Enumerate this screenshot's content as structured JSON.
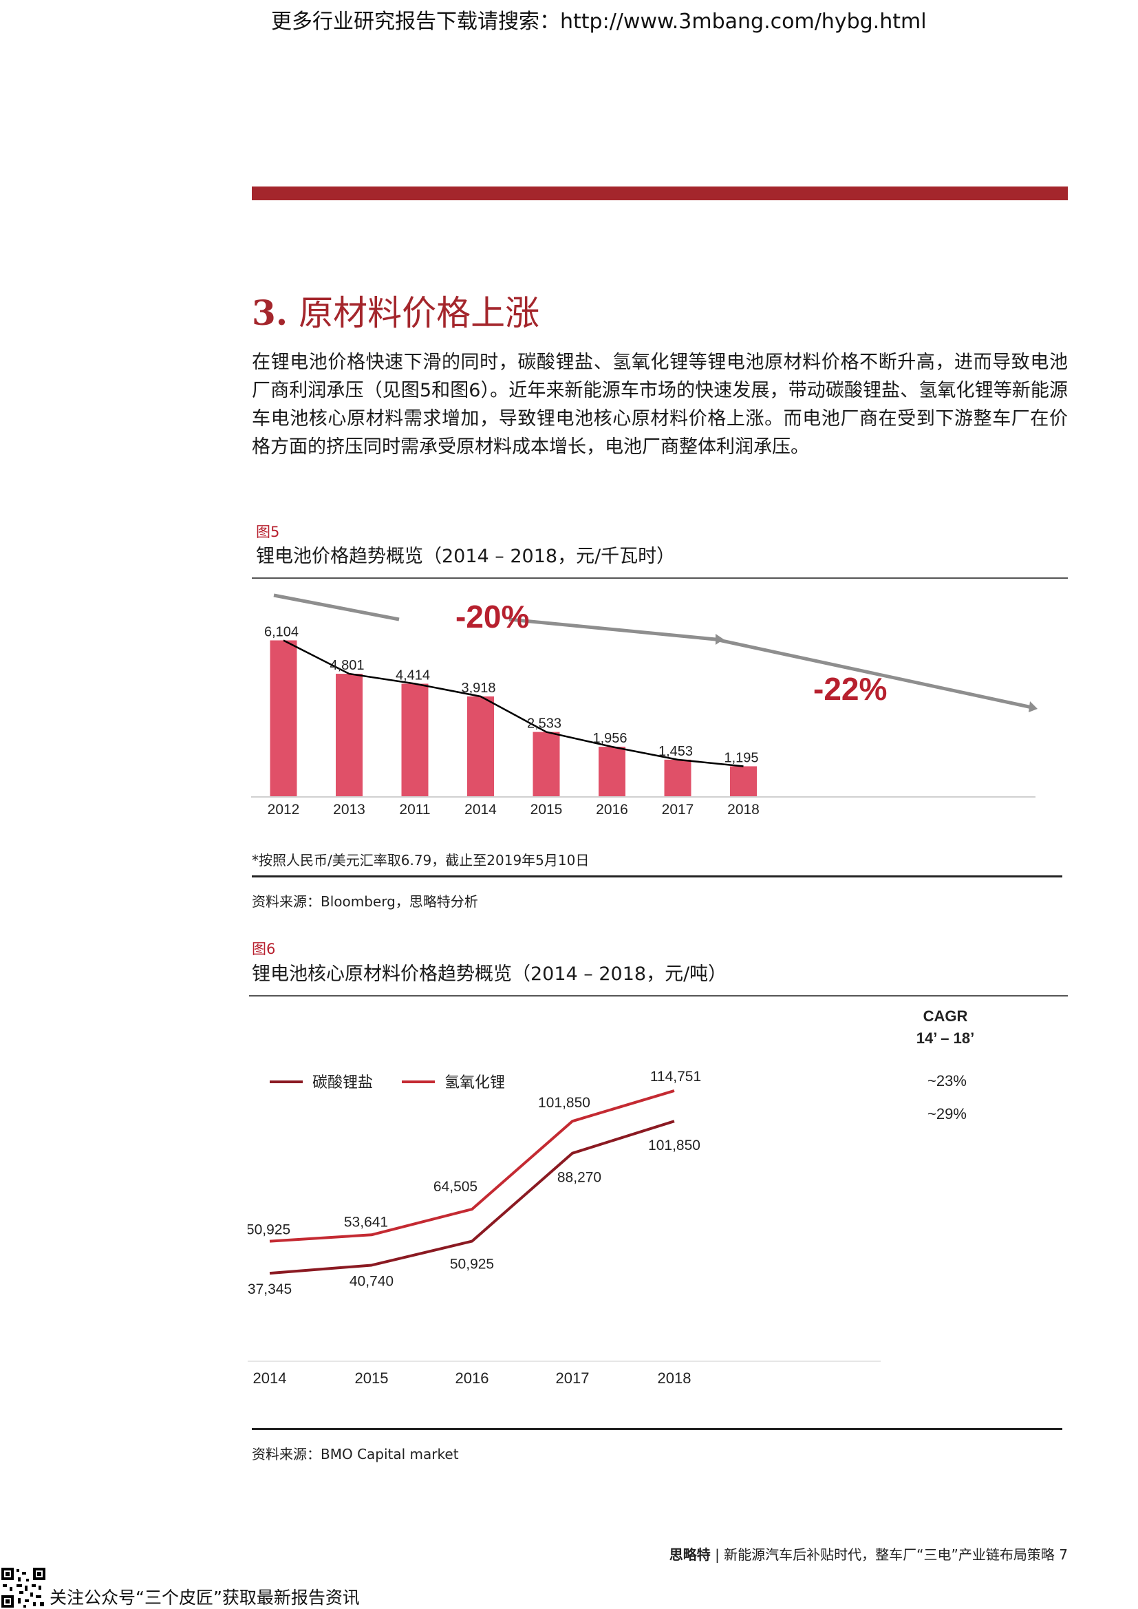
{
  "header": {
    "promo": "更多行业研究报告下载请搜索：http://www.3mbang.com/hybg.html"
  },
  "section": {
    "number": "3.",
    "title": "原材料价格上涨",
    "paragraph": "在锂电池价格快速下滑的同时，碳酸锂盐、氢氧化锂等锂电池原材料价格不断升高，进而导致电池厂商利润承压（见图5和图6）。近年来新能源车市场的快速发展，带动碳酸锂盐、氢氧化锂等新能源车电池核心原材料需求增加，导致锂电池核心原材料价格上涨。而电池厂商在受到下游整车厂在价格方面的挤压同时需承受原材料成本增长，电池厂商整体利润承压。"
  },
  "figure5": {
    "label": "图5",
    "title": "锂电池价格趋势概览（2014 – 2018，元/千瓦时）",
    "note": "*按照人民币/美元汇率取6.79，截止至2019年5月10日",
    "source": "资料来源：Bloomberg，思略特分析",
    "annotations": [
      "-20%",
      "-22%"
    ]
  },
  "figure6": {
    "label": "图6",
    "title": "锂电池核心原材料价格趋势概览（2014 – 2018，元/吨）",
    "source": "资料来源：BMO Capital market",
    "cagr_title": "CAGR",
    "cagr_period": "14’ – 18’"
  },
  "chart_data": [
    {
      "type": "bar",
      "categories": [
        "2012",
        "2013",
        "2011",
        "2014",
        "2015",
        "2016",
        "2017",
        "2018"
      ],
      "values": [
        6104,
        4801,
        4414,
        3918,
        2533,
        1956,
        1453,
        1195
      ],
      "value_labels": [
        "6,104",
        "4,801",
        "4,414",
        "3,918",
        "2,533",
        "1,956",
        "1,453",
        "1,195"
      ],
      "ylim": [
        0,
        6600
      ],
      "bar_color": "#e05068",
      "trend_line_color": "#000000",
      "annotations": [
        "-20%",
        "-22%"
      ],
      "annotation_color": "#b7202e"
    },
    {
      "type": "line",
      "x": [
        "2014",
        "2015",
        "2016",
        "2017",
        "2018"
      ],
      "ylim": [
        0,
        160000
      ],
      "series": [
        {
          "name": "碳酸锂盐",
          "values": [
            37345,
            40740,
            50925,
            88270,
            101850
          ],
          "labels": [
            "37,345",
            "40,740",
            "50,925",
            "88,270",
            "101,850"
          ],
          "cagr": "~29%",
          "color": "#8b1a22"
        },
        {
          "name": "氢氧化锂",
          "values": [
            50925,
            53641,
            64505,
            101850,
            114751
          ],
          "labels": [
            "50,925",
            "53,641",
            "64,505",
            "101,850",
            "114,751"
          ],
          "cagr": "~23%",
          "color": "#c42a32"
        }
      ]
    }
  ],
  "footer": {
    "brand": "思略特",
    "doc_title": "新能源汽车后补贴时代，整车厂“三电”产业链布局策略",
    "page": "7",
    "follow_note": "关注公众号“三个皮匠”获取最新报告资讯"
  }
}
